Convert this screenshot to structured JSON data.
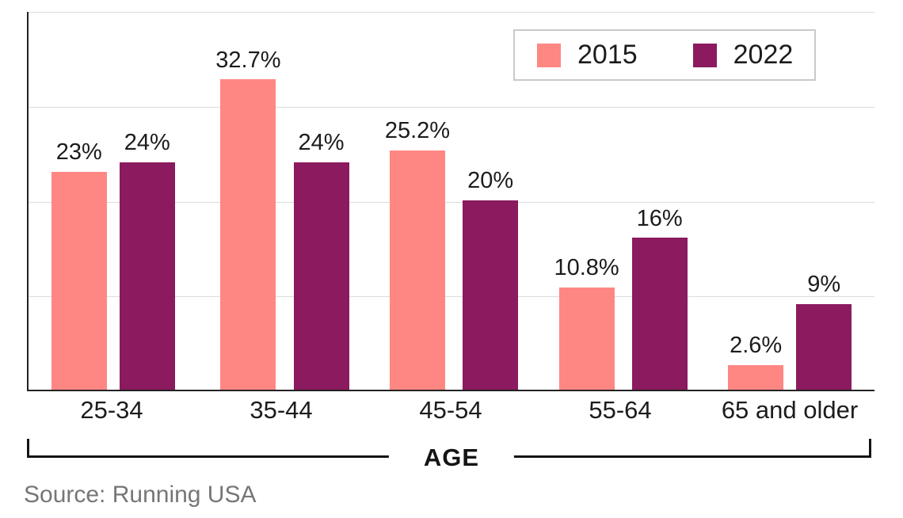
{
  "chart_data": {
    "type": "bar",
    "title": "",
    "categories": [
      "25-34",
      "35-44",
      "45-54",
      "55-64",
      "65 and older"
    ],
    "series": [
      {
        "name": "2015",
        "color": "#ff8783",
        "values": [
          23,
          32.7,
          25.2,
          10.8,
          2.6
        ],
        "labels": [
          "23%",
          "32.7%",
          "25.2%",
          "10.8%",
          "2.6%"
        ]
      },
      {
        "name": "2022",
        "color": "#8b1a5e",
        "values": [
          24,
          24,
          20,
          16,
          9
        ],
        "labels": [
          "24%",
          "24%",
          "20%",
          "16%",
          "9%"
        ]
      }
    ],
    "xlabel": "AGE",
    "ylabel": "",
    "ylim": [
      0,
      40
    ],
    "gridlines": [
      10,
      20,
      30,
      40
    ],
    "grid": "horizontal-light-gray",
    "legend_position": "top-right",
    "source": "Source: Running USA"
  }
}
